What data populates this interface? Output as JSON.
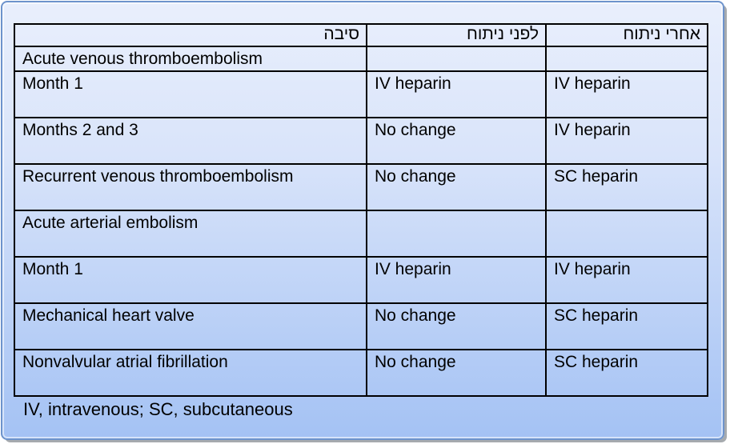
{
  "slide": {
    "kind": "medication-schedule-table",
    "colors": {
      "frame_border": "#6d93cc",
      "gradient_top": "#e9effc",
      "gradient_bottom": "#a4c2f4",
      "cell_border": "#000000",
      "text": "#000000",
      "shadow": "#a6aaae"
    }
  },
  "table": {
    "headers": {
      "reason": "סיבה",
      "before": "לפני ניתוח",
      "after": "אחרי ניתוח"
    },
    "rows": [
      {
        "reason": "Acute venous thromboembolism",
        "before": "",
        "after": ""
      },
      {
        "reason": "Month 1",
        "before": "IV heparin",
        "after": "IV heparin"
      },
      {
        "reason": "Months 2 and 3",
        "before": "No change",
        "after": "IV heparin"
      },
      {
        "reason": "Recurrent venous thromboembolism",
        "before": "No change",
        "after": "SC heparin"
      },
      {
        "reason": "Acute arterial embolism",
        "before": "",
        "after": ""
      },
      {
        "reason": "Month 1",
        "before": "IV heparin",
        "after": "IV heparin"
      },
      {
        "reason": "Mechanical heart valve",
        "before": "No change",
        "after": "SC heparin"
      },
      {
        "reason": "Nonvalvular atrial fibrillation",
        "before": "No change",
        "after": "SC heparin"
      }
    ],
    "footnote": "IV, intravenous; SC, subcutaneous"
  }
}
